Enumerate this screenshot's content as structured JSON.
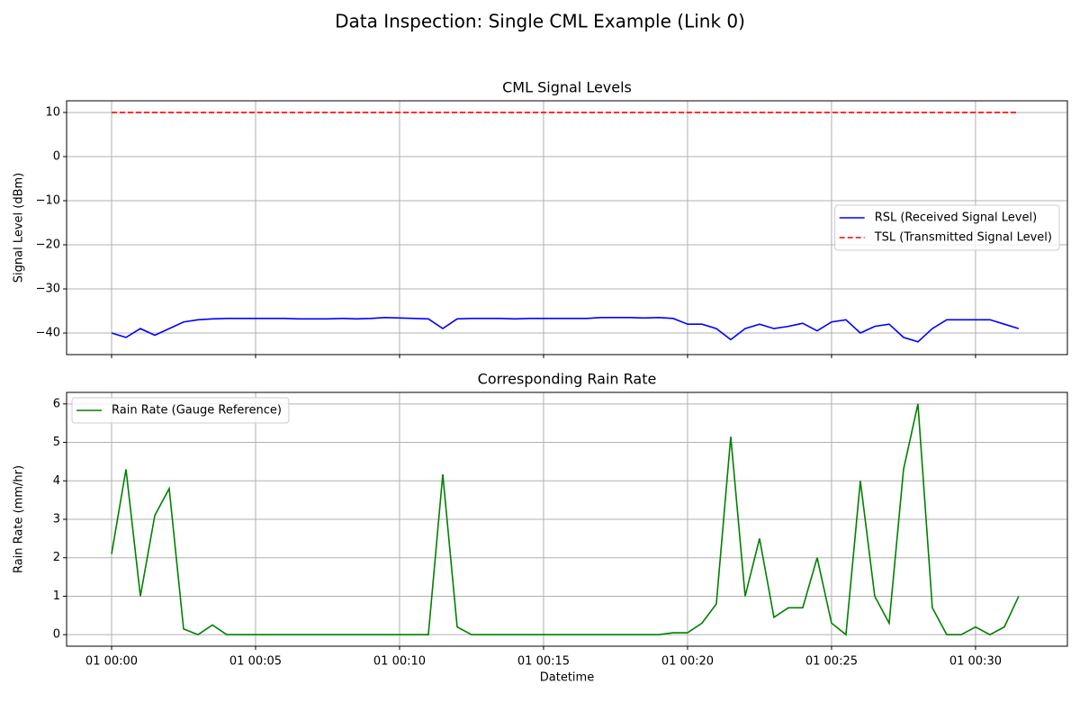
{
  "title": "Data Inspection: Single CML Example (Link 0)",
  "chart_data": [
    {
      "type": "line",
      "title": "CML Signal Levels",
      "y_label": "Signal Level (dBm)",
      "x": [
        0,
        0.5,
        1,
        1.5,
        2,
        2.5,
        3,
        3.5,
        4,
        4.5,
        5,
        5.5,
        6,
        6.5,
        7,
        7.5,
        8,
        8.5,
        9,
        9.5,
        10,
        10.5,
        11,
        11.5,
        12,
        12.5,
        13,
        13.5,
        14,
        14.5,
        15,
        15.5,
        16,
        16.5,
        17,
        17.5,
        18,
        18.5,
        19,
        19.5,
        20,
        20.5,
        21,
        21.5,
        22,
        22.5,
        23,
        23.5,
        24,
        24.5,
        25,
        25.5,
        26,
        26.5,
        27,
        27.5,
        28,
        28.5,
        29,
        29.5,
        30,
        30.5,
        31,
        31.5
      ],
      "series": [
        {
          "name": "RSL (Received Signal Level)",
          "color": "#0000ff",
          "dash": "solid",
          "values": [
            -40,
            -41,
            -39,
            -40.5,
            -39,
            -37.5,
            -37,
            -36.8,
            -36.7,
            -36.7,
            -36.7,
            -36.7,
            -36.7,
            -36.8,
            -36.8,
            -36.8,
            -36.7,
            -36.8,
            -36.7,
            -36.5,
            -36.6,
            -36.7,
            -36.8,
            -39,
            -36.8,
            -36.7,
            -36.7,
            -36.7,
            -36.8,
            -36.7,
            -36.7,
            -36.7,
            -36.7,
            -36.7,
            -36.5,
            -36.5,
            -36.5,
            -36.6,
            -36.5,
            -36.7,
            -38,
            -38,
            -39,
            -41.5,
            -39,
            -38,
            -39,
            -38.5,
            -37.8,
            -39.5,
            -37.5,
            -37,
            -40,
            -38.5,
            -38,
            -41,
            -42,
            -39,
            -37,
            -37,
            -37,
            -37,
            -38,
            -39
          ]
        },
        {
          "name": "TSL (Transmitted Signal Level)",
          "color": "#ff0000",
          "dash": "dashed",
          "values": [
            10,
            10,
            10,
            10,
            10,
            10,
            10,
            10,
            10,
            10,
            10,
            10,
            10,
            10,
            10,
            10,
            10,
            10,
            10,
            10,
            10,
            10,
            10,
            10,
            10,
            10,
            10,
            10,
            10,
            10,
            10,
            10,
            10,
            10,
            10,
            10,
            10,
            10,
            10,
            10,
            10,
            10,
            10,
            10,
            10,
            10,
            10,
            10,
            10,
            10,
            10,
            10,
            10,
            10,
            10,
            10,
            10,
            10,
            10,
            10,
            10,
            10,
            10,
            10
          ]
        }
      ],
      "xlim": [
        -1.5625,
        33.19
      ],
      "xticks": [
        0,
        5,
        10,
        15,
        20,
        25,
        30
      ],
      "ylim": [
        -44.9,
        12.65
      ],
      "yticks": [
        {
          "value": -40,
          "label": "−40"
        },
        {
          "value": -30,
          "label": "−30"
        },
        {
          "value": -20,
          "label": "−20"
        },
        {
          "value": -10,
          "label": "−10"
        },
        0,
        10
      ],
      "grid": true,
      "legend": "center right"
    },
    {
      "type": "line",
      "title": "Corresponding Rain Rate",
      "y_label": "Rain Rate (mm/hr)",
      "x_label": "Datetime",
      "x": [
        0,
        0.5,
        1,
        1.5,
        2,
        2.5,
        3,
        3.5,
        4,
        4.5,
        5,
        5.5,
        6,
        6.5,
        7,
        7.5,
        8,
        8.5,
        9,
        9.5,
        10,
        10.5,
        11,
        11.5,
        12,
        12.5,
        13,
        13.5,
        14,
        14.5,
        15,
        15.5,
        16,
        16.5,
        17,
        17.5,
        18,
        18.5,
        19,
        19.5,
        20,
        20.5,
        21,
        21.5,
        22,
        22.5,
        23,
        23.5,
        24,
        24.5,
        25,
        25.5,
        26,
        26.5,
        27,
        27.5,
        28,
        28.5,
        29,
        29.5,
        30,
        30.5,
        31,
        31.5
      ],
      "series": [
        {
          "name": "Rain Rate (Gauge Reference)",
          "color": "#008000",
          "dash": "solid",
          "values": [
            2.1,
            4.3,
            1.0,
            3.1,
            3.8,
            0.15,
            0,
            0.25,
            0,
            0,
            0,
            0,
            0,
            0,
            0,
            0,
            0,
            0,
            0,
            0,
            0,
            0,
            0,
            4.17,
            0.2,
            0,
            0,
            0,
            0,
            0,
            0,
            0,
            0,
            0,
            0,
            0,
            0,
            0,
            0,
            0.05,
            0.05,
            0.3,
            0.8,
            5.15,
            1.0,
            2.5,
            0.45,
            0.7,
            0.7,
            2.0,
            0.3,
            0,
            4.0,
            1.0,
            0.3,
            4.3,
            6.0,
            0.7,
            0,
            0,
            0.2,
            0,
            0.2,
            1.0
          ]
        }
      ],
      "xlim": [
        -1.5625,
        33.19
      ],
      "xticks": [
        {
          "value": 0,
          "label": "01 00:00"
        },
        {
          "value": 5,
          "label": "01 00:05"
        },
        {
          "value": 10,
          "label": "01 00:10"
        },
        {
          "value": 15,
          "label": "01 00:15"
        },
        {
          "value": 20,
          "label": "01 00:20"
        },
        {
          "value": 25,
          "label": "01 00:25"
        },
        {
          "value": 30,
          "label": "01 00:30"
        }
      ],
      "ylim": [
        -0.3,
        6.3
      ],
      "yticks": [
        0,
        1,
        2,
        3,
        4,
        5,
        6
      ],
      "grid": true,
      "legend": "upper left"
    }
  ]
}
